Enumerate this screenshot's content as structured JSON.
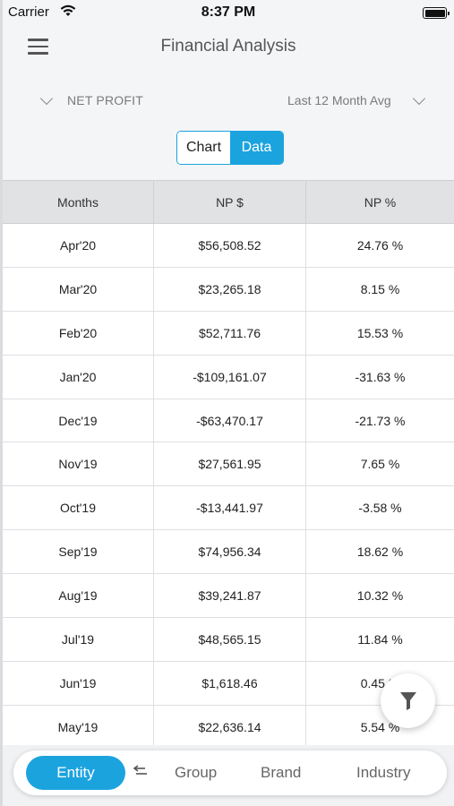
{
  "status_bar": {
    "carrier": "Carrier",
    "time": "8:37 PM"
  },
  "header": {
    "title": "Financial Analysis"
  },
  "filters": {
    "metric": "NET PROFIT",
    "period": "Last 12 Month Avg"
  },
  "view_toggle": {
    "chart_label": "Chart",
    "data_label": "Data",
    "selected": "Data"
  },
  "table": {
    "headers": [
      "Months",
      "NP $",
      "NP %"
    ],
    "rows": [
      [
        "Apr'20",
        "$56,508.52",
        "24.76 %"
      ],
      [
        "Mar'20",
        "$23,265.18",
        "8.15 %"
      ],
      [
        "Feb'20",
        "$52,711.76",
        "15.53 %"
      ],
      [
        "Jan'20",
        "-$109,161.07",
        "-31.63 %"
      ],
      [
        "Dec'19",
        "-$63,470.17",
        "-21.73 %"
      ],
      [
        "Nov'19",
        "$27,561.95",
        "7.65 %"
      ],
      [
        "Oct'19",
        "-$13,441.97",
        "-3.58 %"
      ],
      [
        "Sep'19",
        "$74,956.34",
        "18.62 %"
      ],
      [
        "Aug'19",
        "$39,241.87",
        "10.32 %"
      ],
      [
        "Jul'19",
        "$48,565.15",
        "11.84 %"
      ],
      [
        "Jun'19",
        "$1,618.46",
        "0.45 %"
      ],
      [
        "May'19",
        "$22,636.14",
        "5.54 %"
      ]
    ]
  },
  "bottom_nav": {
    "active": "Entity",
    "items": [
      "Entity",
      "Group",
      "Brand",
      "Industry"
    ]
  },
  "colors": {
    "accent": "#1ba3de"
  }
}
